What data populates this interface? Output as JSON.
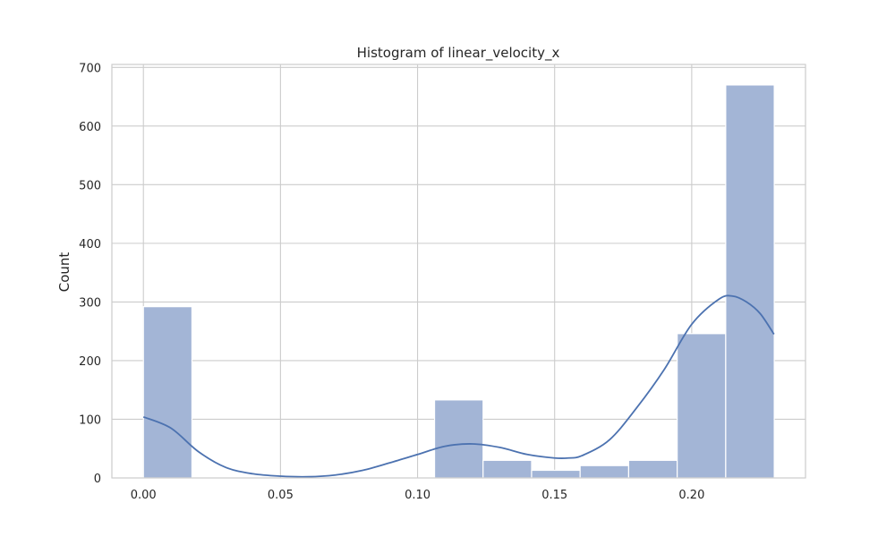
{
  "chart_data": {
    "type": "bar",
    "title": "Histogram of linear_velocity_x",
    "xlabel": "",
    "ylabel": "Count",
    "xlim": [
      -0.0115,
      0.2415
    ],
    "ylim": [
      0,
      705
    ],
    "x_ticks": [
      "0.00",
      "0.05",
      "0.10",
      "0.15",
      "0.20"
    ],
    "x_tick_values": [
      0.0,
      0.05,
      0.1,
      0.15,
      0.2
    ],
    "y_ticks": [
      "0",
      "100",
      "200",
      "300",
      "400",
      "500",
      "600",
      "700"
    ],
    "y_tick_values": [
      0,
      100,
      200,
      300,
      400,
      500,
      600,
      700
    ],
    "bins": [
      {
        "start": 0.0,
        "end": 0.0177,
        "count": 292
      },
      {
        "start": 0.0177,
        "end": 0.0354,
        "count": 0
      },
      {
        "start": 0.0354,
        "end": 0.0531,
        "count": 0
      },
      {
        "start": 0.0531,
        "end": 0.0708,
        "count": 0
      },
      {
        "start": 0.0708,
        "end": 0.0885,
        "count": 0
      },
      {
        "start": 0.0885,
        "end": 0.1062,
        "count": 0
      },
      {
        "start": 0.1062,
        "end": 0.1239,
        "count": 133
      },
      {
        "start": 0.1239,
        "end": 0.1416,
        "count": 30
      },
      {
        "start": 0.1416,
        "end": 0.1593,
        "count": 13
      },
      {
        "start": 0.1593,
        "end": 0.177,
        "count": 21
      },
      {
        "start": 0.177,
        "end": 0.1947,
        "count": 30
      },
      {
        "start": 0.1947,
        "end": 0.2124,
        "count": 246
      },
      {
        "start": 0.2124,
        "end": 0.2301,
        "count": 670
      }
    ],
    "kde": {
      "x": [
        0.0,
        0.01,
        0.02,
        0.03,
        0.04,
        0.05,
        0.06,
        0.07,
        0.08,
        0.09,
        0.1,
        0.11,
        0.12,
        0.13,
        0.14,
        0.15,
        0.155,
        0.16,
        0.17,
        0.18,
        0.19,
        0.2,
        0.21,
        0.215,
        0.22,
        0.225,
        0.23
      ],
      "y": [
        104,
        85,
        45,
        18,
        7,
        3,
        2,
        5,
        13,
        26,
        40,
        54,
        58,
        52,
        40,
        34,
        34,
        38,
        65,
        120,
        185,
        262,
        305,
        310,
        300,
        280,
        245
      ]
    },
    "grid": true,
    "colors": {
      "bar_fill": "#a3b5d6",
      "bar_edge": "#ffffff",
      "kde_line": "#4c72b0",
      "grid": "#cccccc",
      "axes_edge": "#cccccc"
    }
  }
}
